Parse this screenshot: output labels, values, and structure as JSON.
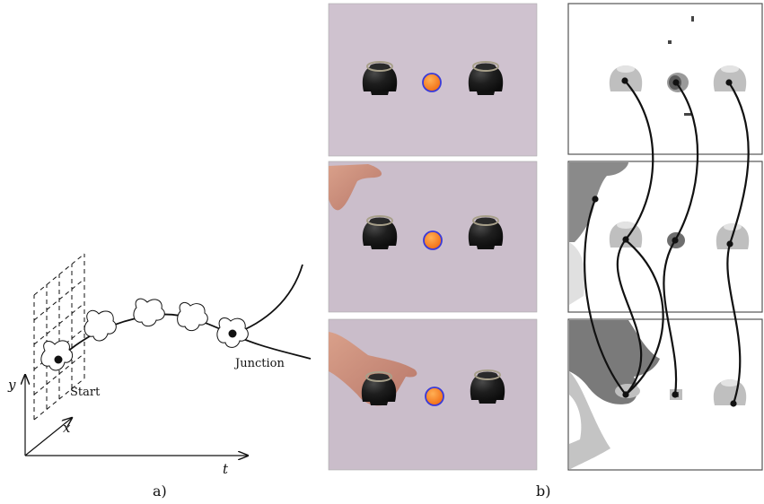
{
  "panel_a": {
    "axis_labels": {
      "y": "y",
      "x": "x",
      "t": "t"
    },
    "start_label": "Start",
    "junction_label": "Junction",
    "caption": "a)"
  },
  "panel_b": {
    "caption": "b)",
    "frames": [
      {
        "name": "frame-1",
        "hand": "none"
      },
      {
        "name": "frame-2",
        "hand": "reaching"
      },
      {
        "name": "frame-3",
        "hand": "grasping-left-cup"
      }
    ],
    "colors": {
      "table": "#cbbecb",
      "cup": "#1b1b1b",
      "ball": "#f4861e",
      "ball_outline": "#3a3ad8",
      "seg_light": "#bfbfbf",
      "seg_dark": "#7d7d7d",
      "track": "#111111"
    }
  }
}
